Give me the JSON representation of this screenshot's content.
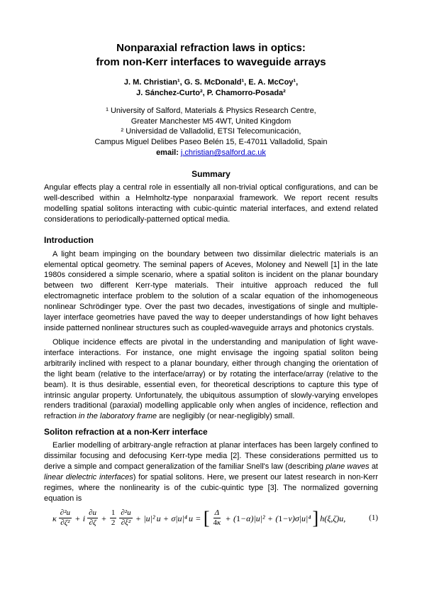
{
  "title_line1": "Nonparaxial refraction laws in optics:",
  "title_line2": "from non-Kerr interfaces to waveguide arrays",
  "authors_line1": "J. M. Christian¹, G. S. McDonald¹, E. A. McCoy¹,",
  "authors_line2": "J. Sánchez-Curto², P. Chamorro-Posada²",
  "affil1": "¹ University of Salford, Materials & Physics Research Centre,",
  "affil1b": "Greater Manchester M5 4WT, United Kingdom",
  "affil2": "² Universidad de Valladolid, ETSI Telecomunicación,",
  "affil2b": "Campus Miguel Delibes Paseo Belén 15, E-47011 Valladolid, Spain",
  "email_label": "email: ",
  "email": "j.christian@salford.ac.uk",
  "summary_heading": "Summary",
  "summary_text": "Angular effects play a central role in essentially all non-trivial optical configurations, and can be well-described within a Helmholtz-type nonparaxial framework. We report recent results modelling spatial solitons interacting with cubic-quintic material interfaces, and extend related considerations to periodically-patterned optical media.",
  "intro_heading": "Introduction",
  "intro_p1": "A light beam impinging on the boundary between two dissimilar dielectric materials is an elemental optical geometry. The seminal papers of Aceves, Moloney and Newell [1] in the late 1980s considered a simple scenario, where a spatial soliton is incident on the planar boundary between two different Kerr-type materials. Their intuitive approach reduced the full electromagnetic interface problem to the solution of a scalar equation of the inhomogeneous nonlinear Schrödinger type. Over the past two decades, investigations of single and multiple-layer interface geometries have paved the way to deeper understandings of how light behaves inside patterned nonlinear structures such as coupled-waveguide arrays and photonics crystals.",
  "intro_p2a": "Oblique incidence effects are pivotal in the understanding and manipulation of light wave-interface interactions. For instance, one might envisage the ingoing spatial soliton being arbitrarily inclined with respect to a planar boundary, either through changing the orientation of the light beam (relative to the interface/array) or by rotating the interface/array (relative to the beam). It is thus desirable, essential even, for theoretical descriptions to capture this type of intrinsic angular property. Unfortunately, the ubiquitous assumption of slowly-varying envelopes renders traditional (paraxial) modelling applicable only when angles of incidence, reflection and refraction ",
  "intro_p2_italic": "in the laboratory frame",
  "intro_p2b": " are negligibly (or near-negligibly) small.",
  "sec2_heading": "Soliton refraction at a non-Kerr interface",
  "sec2_p1a": "Earlier modelling of arbitrary-angle refraction at planar interfaces has been largely confined to dissimilar focusing and defocusing Kerr-type media [2]. These considerations permitted us to derive a simple and compact generalization of the familiar Snell's law (describing ",
  "sec2_italic1": "plane waves",
  "sec2_p1b": " at ",
  "sec2_italic2": "linear dielectric interfaces",
  "sec2_p1c": ") for spatial solitons. Here, we present our latest research in non-Kerr regimes, where the nonlinearity is of the cubic-quintic type [3]. The normalized governing equation is",
  "equation": {
    "number": "(1)",
    "colors": {
      "text": "#000000"
    },
    "fontsize": 12
  }
}
